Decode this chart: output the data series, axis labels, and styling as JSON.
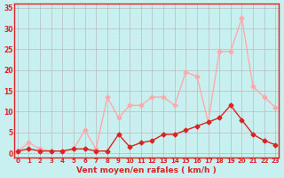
{
  "x": [
    0,
    1,
    2,
    3,
    4,
    5,
    6,
    7,
    8,
    9,
    10,
    11,
    12,
    13,
    14,
    15,
    16,
    17,
    18,
    19,
    20,
    21,
    22,
    23
  ],
  "y_rafales": [
    0.5,
    2.5,
    1.0,
    0.5,
    0.5,
    1.0,
    5.5,
    1.0,
    13.5,
    8.5,
    11.5,
    11.5,
    13.5,
    13.5,
    11.5,
    19.5,
    18.5,
    7.5,
    24.5,
    24.5,
    32.5,
    16.0,
    13.5,
    11.0
  ],
  "y_moyen": [
    0.5,
    1.0,
    0.5,
    0.5,
    0.5,
    1.0,
    1.0,
    0.5,
    0.5,
    4.5,
    1.5,
    2.5,
    3.0,
    4.5,
    4.5,
    5.5,
    6.5,
    7.5,
    8.5,
    11.5,
    8.0,
    4.5,
    3.0,
    2.0
  ],
  "line_color_rafales": "#ffaaaa",
  "line_color_moyen": "#dd2222",
  "bg_color": "#c8f0f0",
  "grid_color": "#bbbbbb",
  "xlabel": "Vent moyen/en rafales ( km/h )",
  "yticks": [
    0,
    5,
    10,
    15,
    20,
    25,
    30,
    35
  ],
  "xticks": [
    0,
    1,
    2,
    3,
    4,
    5,
    6,
    7,
    8,
    9,
    10,
    11,
    12,
    13,
    14,
    15,
    16,
    17,
    18,
    19,
    20,
    21,
    22,
    23
  ],
  "ylim": [
    -1,
    36
  ],
  "xlim": [
    -0.3,
    23.3
  ]
}
